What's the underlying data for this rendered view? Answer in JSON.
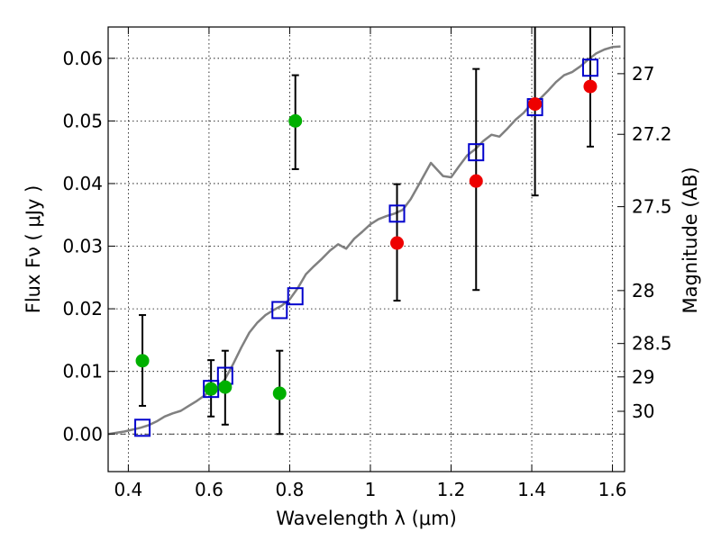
{
  "chart_data": {
    "type": "scatter",
    "xlabel": "Wavelength  λ (μm)",
    "ylabel": "Flux  Fν ( μJy )",
    "y2label": "Magnitude (AB)",
    "xlim": [
      0.35,
      1.63
    ],
    "ylim": [
      -0.006,
      0.065
    ],
    "x_ticks": [
      0.4,
      0.6,
      0.8,
      1.0,
      1.2,
      1.4,
      1.6
    ],
    "x_tick_labels": [
      "0.4",
      "0.6",
      "0.8",
      "1",
      "1.2",
      "1.4",
      "1.6"
    ],
    "y_ticks": [
      0.0,
      0.01,
      0.02,
      0.03,
      0.04,
      0.05,
      0.06
    ],
    "y_tick_labels": [
      "0.00",
      "0.01",
      "0.02",
      "0.03",
      "0.04",
      "0.05",
      "0.06"
    ],
    "y2_ticks": [
      {
        "label": "27",
        "value": 27
      },
      {
        "label": "27.2",
        "value": 27.2
      },
      {
        "label": "27.5",
        "value": 27.5
      },
      {
        "label": "28",
        "value": 28
      },
      {
        "label": "28.5",
        "value": 28.5
      },
      {
        "label": "29",
        "value": 29
      },
      {
        "label": "30",
        "value": 30
      }
    ],
    "grid": true,
    "colors": {
      "model": "#808080",
      "measured_green": "#00b000",
      "measured_red": "#ee0000",
      "model_photometry": "#0000cc",
      "errorbar": "#000000"
    },
    "series": [
      {
        "style": "line",
        "points": [
          [
            0.35,
            0.0
          ],
          [
            0.37,
            0.0002
          ],
          [
            0.39,
            0.0004
          ],
          [
            0.41,
            0.0007
          ],
          [
            0.43,
            0.001
          ],
          [
            0.45,
            0.0014
          ],
          [
            0.47,
            0.002
          ],
          [
            0.49,
            0.0028
          ],
          [
            0.51,
            0.0033
          ],
          [
            0.53,
            0.0037
          ],
          [
            0.55,
            0.0045
          ],
          [
            0.57,
            0.0053
          ],
          [
            0.59,
            0.0062
          ],
          [
            0.6,
            0.0068
          ],
          [
            0.62,
            0.0072
          ],
          [
            0.64,
            0.0088
          ],
          [
            0.66,
            0.0112
          ],
          [
            0.68,
            0.0138
          ],
          [
            0.7,
            0.0162
          ],
          [
            0.72,
            0.0178
          ],
          [
            0.74,
            0.019
          ],
          [
            0.76,
            0.0198
          ],
          [
            0.78,
            0.0205
          ],
          [
            0.8,
            0.0215
          ],
          [
            0.82,
            0.0233
          ],
          [
            0.84,
            0.0255
          ],
          [
            0.86,
            0.0268
          ],
          [
            0.88,
            0.028
          ],
          [
            0.9,
            0.0293
          ],
          [
            0.92,
            0.0303
          ],
          [
            0.94,
            0.0296
          ],
          [
            0.96,
            0.0312
          ],
          [
            0.98,
            0.0323
          ],
          [
            1.0,
            0.0335
          ],
          [
            1.02,
            0.0343
          ],
          [
            1.04,
            0.0348
          ],
          [
            1.06,
            0.0352
          ],
          [
            1.08,
            0.0358
          ],
          [
            1.1,
            0.0375
          ],
          [
            1.12,
            0.0398
          ],
          [
            1.15,
            0.0433
          ],
          [
            1.18,
            0.0412
          ],
          [
            1.2,
            0.041
          ],
          [
            1.22,
            0.0428
          ],
          [
            1.24,
            0.0445
          ],
          [
            1.26,
            0.0455
          ],
          [
            1.28,
            0.0468
          ],
          [
            1.3,
            0.0478
          ],
          [
            1.32,
            0.0475
          ],
          [
            1.34,
            0.0488
          ],
          [
            1.36,
            0.0502
          ],
          [
            1.38,
            0.0513
          ],
          [
            1.4,
            0.0528
          ],
          [
            1.42,
            0.0535
          ],
          [
            1.44,
            0.0548
          ],
          [
            1.46,
            0.0562
          ],
          [
            1.48,
            0.0573
          ],
          [
            1.5,
            0.0578
          ],
          [
            1.52,
            0.0587
          ],
          [
            1.54,
            0.0598
          ],
          [
            1.56,
            0.0608
          ],
          [
            1.58,
            0.0614
          ],
          [
            1.6,
            0.0618
          ],
          [
            1.62,
            0.0619
          ]
        ]
      },
      {
        "style": "markers-circle",
        "points": [
          {
            "x": 0.435,
            "y": 0.0117,
            "err": [
              0.0045,
              0.019
            ]
          },
          {
            "x": 0.605,
            "y": 0.0072,
            "err": [
              0.0028,
              0.0118
            ]
          },
          {
            "x": 0.64,
            "y": 0.0075,
            "err": [
              0.0015,
              0.0133
            ]
          },
          {
            "x": 0.775,
            "y": 0.0065,
            "err": [
              0.0,
              0.0133
            ]
          },
          {
            "x": 0.814,
            "y": 0.05,
            "err": [
              0.0423,
              0.0573
            ]
          }
        ]
      },
      {
        "style": "markers-circle",
        "points": [
          {
            "x": 1.066,
            "y": 0.0305,
            "err": [
              0.0213,
              0.0399
            ]
          },
          {
            "x": 1.262,
            "y": 0.0404,
            "err": [
              0.023,
              0.0583
            ]
          },
          {
            "x": 1.408,
            "y": 0.0527,
            "err": [
              0.0381,
              0.0665
            ]
          },
          {
            "x": 1.545,
            "y": 0.0555,
            "err": [
              0.0459,
              0.0665
            ]
          }
        ]
      },
      {
        "style": "markers-square",
        "points": [
          {
            "x": 0.435,
            "y": 0.001
          },
          {
            "x": 0.605,
            "y": 0.0072
          },
          {
            "x": 0.64,
            "y": 0.0093
          },
          {
            "x": 0.775,
            "y": 0.0198
          },
          {
            "x": 0.814,
            "y": 0.022
          },
          {
            "x": 1.066,
            "y": 0.0352
          },
          {
            "x": 1.262,
            "y": 0.045
          },
          {
            "x": 1.408,
            "y": 0.0522
          },
          {
            "x": 1.545,
            "y": 0.0585
          }
        ]
      }
    ]
  }
}
